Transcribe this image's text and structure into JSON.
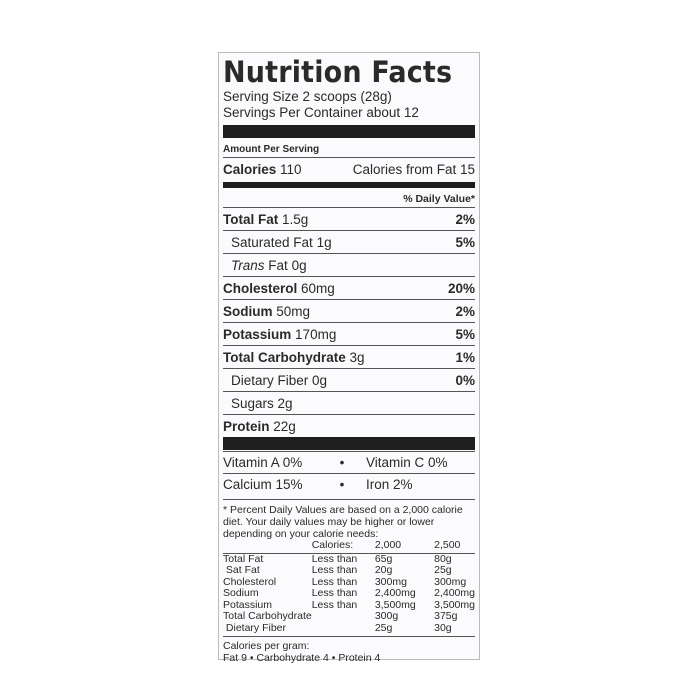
{
  "title": "Nutrition Facts",
  "serving_size": "Serving Size 2 scoops (28g)",
  "servings_per_container": "Servings Per Container about 12",
  "amount_per_serving": "Amount Per Serving",
  "calories": {
    "label": "Calories",
    "value": "110",
    "from_fat": "Calories from Fat 15"
  },
  "dv_header": "% Daily Value*",
  "nutrients": [
    {
      "name": "Total Fat",
      "amount": "1.5g",
      "dv": "2%",
      "bold": true
    },
    {
      "name": "Saturated Fat",
      "amount": "1g",
      "dv": "5%",
      "bold": false
    },
    {
      "name": "Trans",
      "name2": "Fat",
      "amount": "0g",
      "dv": "",
      "bold": false
    },
    {
      "name": "Cholesterol",
      "amount": "60mg",
      "dv": "20%",
      "bold": true
    },
    {
      "name": "Sodium",
      "amount": "50mg",
      "dv": "2%",
      "bold": true
    },
    {
      "name": "Potassium",
      "amount": "170mg",
      "dv": "5%",
      "bold": true
    },
    {
      "name": "Total Carbohydrate",
      "amount": "3g",
      "dv": "1%",
      "bold": true
    },
    {
      "name": "Dietary Fiber",
      "amount": "0g",
      "dv": "0%",
      "bold": false
    },
    {
      "name": "Sugars",
      "amount": "2g",
      "dv": "",
      "bold": false
    },
    {
      "name": "Protein",
      "amount": "22g",
      "dv": "",
      "bold": true
    }
  ],
  "vitamins": [
    [
      "Vitamin A 0%",
      "Vitamin C 0%"
    ],
    [
      "Calcium 15%",
      "Iron 2%"
    ]
  ],
  "footnote": "* Percent Daily Values are based on a 2,000 calorie diet. Your daily values may be higher or lower depending on your calorie needs:",
  "dv_table": {
    "header": [
      "Calories:",
      "2,000",
      "2,500"
    ],
    "rows": [
      [
        "Total Fat",
        "Less than",
        "65g",
        "80g"
      ],
      [
        " Sat Fat",
        "Less than",
        "20g",
        "25g"
      ],
      [
        "Cholesterol",
        "Less than",
        "300mg",
        "300mg"
      ],
      [
        "Sodium",
        "Less than",
        "2,400mg",
        "2,400mg"
      ],
      [
        "Potassium",
        "Less than",
        "3,500mg",
        "3,500mg"
      ],
      [
        "Total Carbohydrate",
        "",
        "300g",
        "375g"
      ],
      [
        " Dietary Fiber",
        "",
        "25g",
        "30g"
      ]
    ]
  },
  "calories_per_gram": "Calories per gram:",
  "cpg_values": "Fat 9 • Carbohydrate 4 • Protein 4"
}
